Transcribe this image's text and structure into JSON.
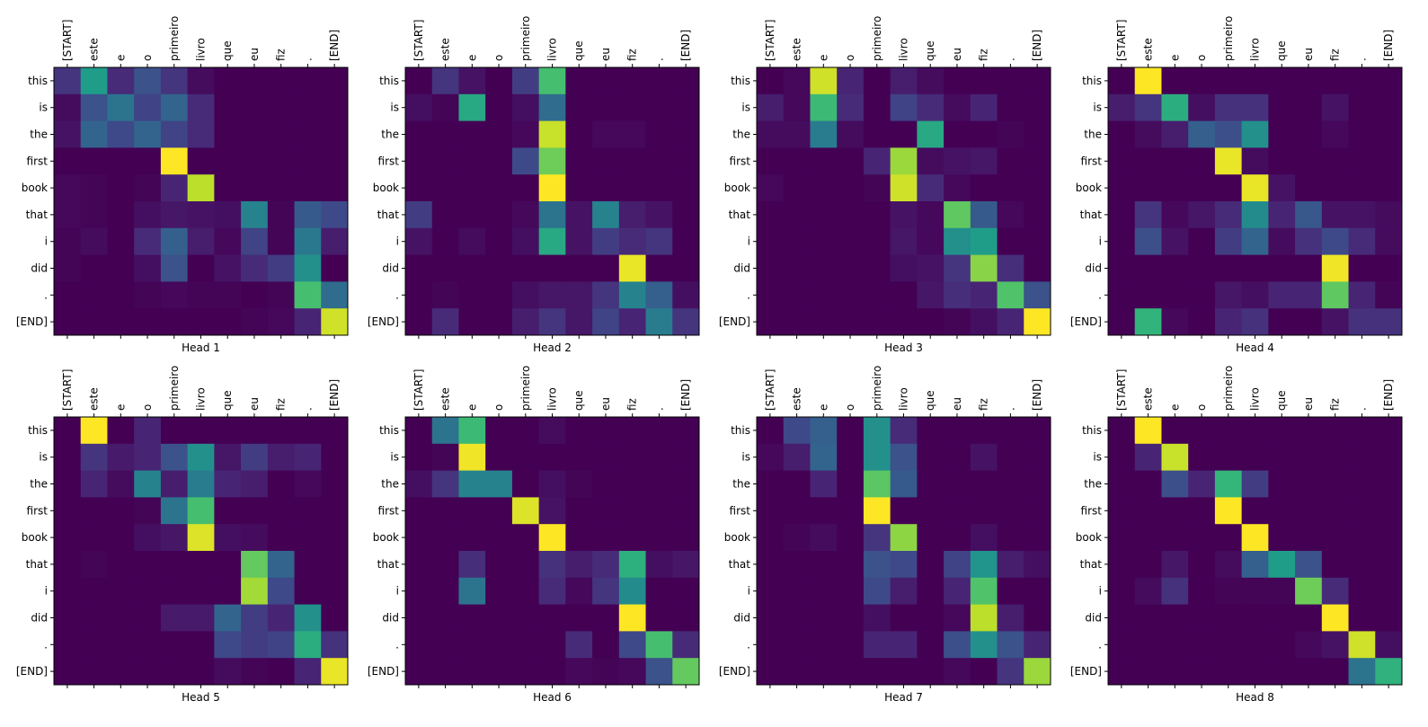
{
  "chart_data": {
    "type": "heatmap",
    "colormap": "viridis",
    "x_tick_labels": [
      "[START]",
      "este",
      "e",
      "o",
      "primeiro",
      "livro",
      "que",
      "eu",
      "fiz",
      ".",
      "[END]"
    ],
    "y_tick_labels": [
      "this",
      "is",
      "the",
      "first",
      "book",
      "that",
      "i",
      "did",
      ".",
      "[END]"
    ],
    "value_range": [
      0,
      1
    ],
    "grid": false,
    "panels": [
      {
        "title": "Head 1",
        "values": [
          [
            0.15,
            0.55,
            0.12,
            0.25,
            0.15,
            0.03,
            0,
            0,
            0,
            0,
            0
          ],
          [
            0.03,
            0.25,
            0.38,
            0.2,
            0.32,
            0.12,
            0,
            0,
            0,
            0,
            0
          ],
          [
            0.05,
            0.32,
            0.22,
            0.32,
            0.2,
            0.12,
            0,
            0,
            0,
            0,
            0
          ],
          [
            0,
            0,
            0,
            0,
            1,
            0,
            0,
            0,
            0,
            0,
            0
          ],
          [
            0.02,
            0.01,
            0,
            0.01,
            0.1,
            0.9,
            0,
            0,
            0,
            0,
            0
          ],
          [
            0.02,
            0.01,
            0,
            0.04,
            0.06,
            0.05,
            0.04,
            0.45,
            0.01,
            0.28,
            0.22
          ],
          [
            0.01,
            0.03,
            0,
            0.12,
            0.3,
            0.08,
            0.02,
            0.2,
            0.01,
            0.4,
            0.08
          ],
          [
            0.01,
            0,
            0,
            0.04,
            0.25,
            0,
            0.05,
            0.12,
            0.18,
            0.5,
            0
          ],
          [
            0,
            0,
            0,
            0.01,
            0.02,
            0.01,
            0.01,
            0,
            0.01,
            0.7,
            0.35
          ],
          [
            0,
            0,
            0,
            0,
            0,
            0,
            0,
            0.01,
            0.02,
            0.1,
            0.93
          ]
        ]
      },
      {
        "title": "Head 2",
        "values": [
          [
            0,
            0.15,
            0.05,
            0,
            0.18,
            0.7,
            0,
            0,
            0,
            0,
            0
          ],
          [
            0.04,
            0.01,
            0.6,
            0,
            0.04,
            0.35,
            0,
            0,
            0,
            0,
            0
          ],
          [
            0,
            0,
            0,
            0,
            0.02,
            0.92,
            0,
            0.02,
            0.02,
            0,
            0
          ],
          [
            0,
            0,
            0,
            0,
            0.22,
            0.78,
            0,
            0,
            0,
            0,
            0
          ],
          [
            0,
            0,
            0,
            0,
            0,
            1,
            0,
            0,
            0,
            0,
            0
          ],
          [
            0.18,
            0,
            0,
            0,
            0.02,
            0.38,
            0.05,
            0.45,
            0.08,
            0.05,
            0
          ],
          [
            0.05,
            0,
            0.03,
            0,
            0.04,
            0.6,
            0.05,
            0.18,
            0.12,
            0.15,
            0
          ],
          [
            0,
            0,
            0,
            0,
            0,
            0,
            0,
            0,
            0.97,
            0,
            0
          ],
          [
            0,
            0.01,
            0,
            0,
            0.04,
            0.06,
            0.06,
            0.15,
            0.45,
            0.3,
            0.04
          ],
          [
            0,
            0.12,
            0,
            0,
            0.08,
            0.15,
            0.06,
            0.2,
            0.1,
            0.42,
            0.15
          ]
        ]
      },
      {
        "title": "Head 3",
        "values": [
          [
            0,
            0.02,
            0.93,
            0.1,
            0,
            0.08,
            0.03,
            0,
            0,
            0,
            0
          ],
          [
            0.08,
            0.02,
            0.68,
            0.12,
            0,
            0.2,
            0.12,
            0.03,
            0.1,
            0,
            0
          ],
          [
            0.03,
            0.03,
            0.42,
            0.03,
            0,
            0,
            0.6,
            0,
            0,
            0.01,
            0
          ],
          [
            0,
            0,
            0,
            0,
            0.1,
            0.85,
            0.03,
            0.05,
            0.06,
            0,
            0
          ],
          [
            0.02,
            0,
            0,
            0,
            0.01,
            0.93,
            0.12,
            0.02,
            0,
            0,
            0
          ],
          [
            0,
            0,
            0,
            0,
            0,
            0.05,
            0.02,
            0.75,
            0.28,
            0.02,
            0
          ],
          [
            0,
            0,
            0,
            0,
            0,
            0.06,
            0.02,
            0.5,
            0.55,
            0,
            0
          ],
          [
            0,
            0,
            0,
            0,
            0,
            0.04,
            0.05,
            0.15,
            0.82,
            0.13,
            0
          ],
          [
            0,
            0,
            0,
            0,
            0,
            0,
            0.06,
            0.13,
            0.1,
            0.72,
            0.25
          ],
          [
            0,
            0,
            0,
            0,
            0,
            0,
            0,
            0.01,
            0.04,
            0.1,
            1
          ]
        ]
      },
      {
        "title": "Head 4",
        "values": [
          [
            0,
            1,
            0,
            0,
            0,
            0,
            0,
            0,
            0,
            0,
            0
          ],
          [
            0.08,
            0.15,
            0.62,
            0.04,
            0.14,
            0.14,
            0,
            0,
            0.05,
            0,
            0
          ],
          [
            0,
            0.03,
            0.08,
            0.3,
            0.24,
            0.5,
            0,
            0,
            0.02,
            0,
            0
          ],
          [
            0,
            0,
            0,
            0,
            0.97,
            0.03,
            0,
            0,
            0,
            0,
            0
          ],
          [
            0,
            0,
            0,
            0,
            0,
            0.97,
            0.05,
            0,
            0,
            0,
            0
          ],
          [
            0,
            0.15,
            0.02,
            0.06,
            0.12,
            0.48,
            0.1,
            0.27,
            0.05,
            0.05,
            0.03
          ],
          [
            0,
            0.24,
            0.05,
            0,
            0.18,
            0.32,
            0.03,
            0.14,
            0.22,
            0.12,
            0.03
          ],
          [
            0,
            0,
            0,
            0,
            0,
            0,
            0,
            0,
            0.98,
            0,
            0
          ],
          [
            0,
            0,
            0,
            0,
            0.06,
            0.04,
            0.1,
            0.1,
            0.75,
            0.1,
            0.01
          ],
          [
            0,
            0.65,
            0.02,
            0,
            0.1,
            0.14,
            0,
            0,
            0.05,
            0.14,
            0.14
          ]
        ]
      },
      {
        "title": "Head 5",
        "values": [
          [
            0,
            1,
            0,
            0.1,
            0,
            0,
            0,
            0,
            0,
            0,
            0
          ],
          [
            0,
            0.15,
            0.07,
            0.1,
            0.25,
            0.5,
            0.06,
            0.18,
            0.08,
            0.1,
            0
          ],
          [
            0,
            0.1,
            0.03,
            0.45,
            0.08,
            0.42,
            0.1,
            0.08,
            0,
            0.02,
            0
          ],
          [
            0,
            0,
            0,
            0.01,
            0.38,
            0.7,
            0,
            0,
            0,
            0,
            0
          ],
          [
            0,
            0,
            0,
            0.04,
            0.06,
            0.95,
            0.04,
            0.03,
            0,
            0,
            0
          ],
          [
            0,
            0.01,
            0,
            0,
            0,
            0,
            0,
            0.76,
            0.32,
            0,
            0
          ],
          [
            0,
            0,
            0,
            0,
            0,
            0,
            0,
            0.86,
            0.22,
            0,
            0
          ],
          [
            0,
            0,
            0,
            0,
            0.07,
            0.07,
            0.32,
            0.18,
            0.1,
            0.5,
            0
          ],
          [
            0,
            0,
            0,
            0,
            0,
            0,
            0.22,
            0.18,
            0.2,
            0.62,
            0.14
          ],
          [
            0,
            0,
            0,
            0,
            0,
            0,
            0.03,
            0.01,
            0,
            0.1,
            0.97
          ]
        ]
      },
      {
        "title": "Head 6",
        "values": [
          [
            0,
            0.38,
            0.68,
            0,
            0,
            0.03,
            0,
            0,
            0,
            0,
            0
          ],
          [
            0,
            0.01,
            0.98,
            0,
            0,
            0,
            0,
            0,
            0,
            0,
            0
          ],
          [
            0.04,
            0.15,
            0.45,
            0.45,
            0,
            0.04,
            0.01,
            0,
            0,
            0,
            0
          ],
          [
            0,
            0,
            0,
            0,
            0.95,
            0.05,
            0,
            0,
            0,
            0,
            0
          ],
          [
            0,
            0,
            0,
            0,
            0,
            1,
            0,
            0,
            0,
            0,
            0
          ],
          [
            0,
            0,
            0.13,
            0,
            0,
            0.14,
            0.08,
            0.12,
            0.63,
            0.04,
            0.06
          ],
          [
            0,
            0,
            0.38,
            0,
            0,
            0.12,
            0.02,
            0.15,
            0.48,
            0,
            0
          ],
          [
            0,
            0,
            0,
            0,
            0,
            0,
            0,
            0,
            1,
            0,
            0
          ],
          [
            0,
            0,
            0,
            0,
            0,
            0,
            0.12,
            0,
            0.22,
            0.7,
            0.12
          ],
          [
            0,
            0,
            0,
            0,
            0,
            0,
            0.02,
            0.01,
            0.02,
            0.25,
            0.76
          ]
        ]
      },
      {
        "title": "Head 7",
        "values": [
          [
            0,
            0.22,
            0.3,
            0,
            0.5,
            0.12,
            0,
            0,
            0,
            0,
            0
          ],
          [
            0.02,
            0.08,
            0.32,
            0,
            0.5,
            0.25,
            0,
            0,
            0.05,
            0,
            0
          ],
          [
            0,
            0,
            0.1,
            0,
            0.74,
            0.28,
            0,
            0,
            0,
            0,
            0
          ],
          [
            0,
            0,
            0,
            0,
            1,
            0,
            0,
            0,
            0,
            0,
            0
          ],
          [
            0,
            0.01,
            0.03,
            0,
            0.15,
            0.83,
            0,
            0,
            0.04,
            0,
            0
          ],
          [
            0,
            0,
            0,
            0,
            0.25,
            0.22,
            0,
            0.2,
            0.52,
            0.08,
            0.04
          ],
          [
            0,
            0,
            0,
            0,
            0.22,
            0.08,
            0,
            0.1,
            0.72,
            0,
            0
          ],
          [
            0,
            0,
            0,
            0,
            0.04,
            0,
            0,
            0.02,
            0.9,
            0.08,
            0
          ],
          [
            0,
            0,
            0,
            0,
            0.1,
            0.1,
            0,
            0.24,
            0.5,
            0.25,
            0.1
          ],
          [
            0,
            0,
            0,
            0,
            0,
            0,
            0,
            0.02,
            0,
            0.15,
            0.85
          ]
        ]
      },
      {
        "title": "Head 8",
        "values": [
          [
            0,
            1,
            0,
            0,
            0,
            0,
            0,
            0,
            0,
            0,
            0
          ],
          [
            0,
            0.1,
            0.92,
            0,
            0,
            0,
            0,
            0,
            0,
            0,
            0
          ],
          [
            0,
            0,
            0.24,
            0.1,
            0.66,
            0.18,
            0,
            0,
            0,
            0,
            0
          ],
          [
            0,
            0,
            0,
            0,
            1,
            0,
            0,
            0,
            0,
            0,
            0
          ],
          [
            0,
            0,
            0,
            0,
            0,
            1,
            0,
            0,
            0,
            0,
            0
          ],
          [
            0,
            0,
            0.06,
            0,
            0.03,
            0.3,
            0.55,
            0.25,
            0,
            0,
            0
          ],
          [
            0,
            0.03,
            0.14,
            0,
            0.01,
            0.01,
            0.01,
            0.78,
            0.12,
            0,
            0
          ],
          [
            0,
            0,
            0,
            0,
            0,
            0,
            0,
            0,
            1,
            0,
            0
          ],
          [
            0,
            0,
            0,
            0,
            0,
            0,
            0,
            0.02,
            0.05,
            0.93,
            0.04
          ],
          [
            0,
            0,
            0,
            0,
            0,
            0,
            0,
            0,
            0,
            0.38,
            0.64
          ]
        ]
      }
    ]
  }
}
